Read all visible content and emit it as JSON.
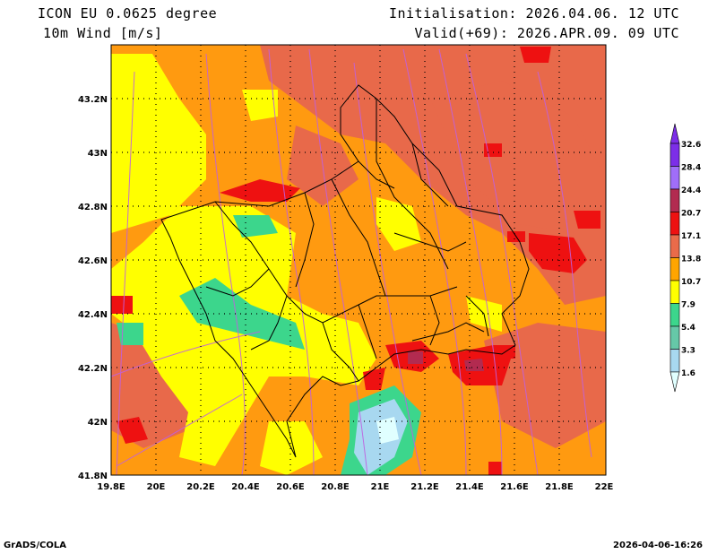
{
  "header": {
    "model": "ICON EU 0.0625 degree",
    "variable": "10m Wind [m/s]",
    "init": "Initialisation: 2026.04.06. 12 UTC",
    "valid": "Valid(+69): 2026.APR.09. 09 UTC"
  },
  "map": {
    "lon_ticks": [
      "19.8E",
      "20E",
      "20.2E",
      "20.4E",
      "20.6E",
      "20.8E",
      "21E",
      "21.2E",
      "21.4E",
      "21.6E",
      "21.8E",
      "22E"
    ],
    "lat_ticks": [
      "41.8N",
      "42N",
      "42.2N",
      "42.4N",
      "42.6N",
      "42.8N",
      "43N",
      "43.2N"
    ],
    "lon_range": [
      19.8,
      22.0
    ],
    "lat_range": [
      41.8,
      43.4
    ]
  },
  "legend": {
    "values": [
      "1.6",
      "3.3",
      "5.4",
      "7.9",
      "10.7",
      "13.8",
      "17.1",
      "20.7",
      "24.4",
      "28.4",
      "32.6"
    ],
    "colors": [
      "#e0ffff",
      "#a8d8f0",
      "#66c8a8",
      "#3cd68c",
      "#ffff00",
      "#ffa500",
      "#e96b4a",
      "#ee1111",
      "#b22b50",
      "#a06ef8",
      "#7c2ee8"
    ],
    "arrow_color": "#c060e0"
  },
  "footer": {
    "left": "GrADS/COLA",
    "right": "2026-04-06-16:26"
  }
}
